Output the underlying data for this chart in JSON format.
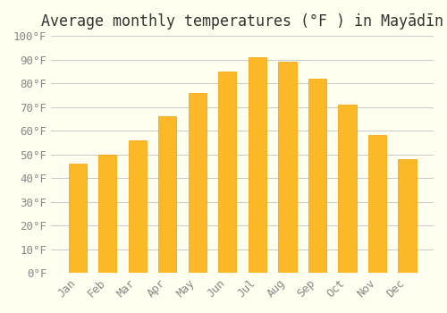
{
  "title": "Average monthly temperatures (°F ) in Mayādīn",
  "months": [
    "Jan",
    "Feb",
    "Mar",
    "Apr",
    "May",
    "Jun",
    "Jul",
    "Aug",
    "Sep",
    "Oct",
    "Nov",
    "Dec"
  ],
  "values": [
    46,
    50,
    56,
    66,
    76,
    85,
    91,
    89,
    82,
    71,
    58,
    48
  ],
  "bar_color": "#FDB827",
  "bar_edge_color": "#F0A000",
  "background_color": "#FFFFF0",
  "grid_color": "#CCCCCC",
  "ylim": [
    0,
    100
  ],
  "yticks": [
    0,
    10,
    20,
    30,
    40,
    50,
    60,
    70,
    80,
    90,
    100
  ],
  "title_fontsize": 12,
  "tick_fontsize": 9,
  "figsize": [
    5.0,
    3.5
  ],
  "dpi": 100
}
